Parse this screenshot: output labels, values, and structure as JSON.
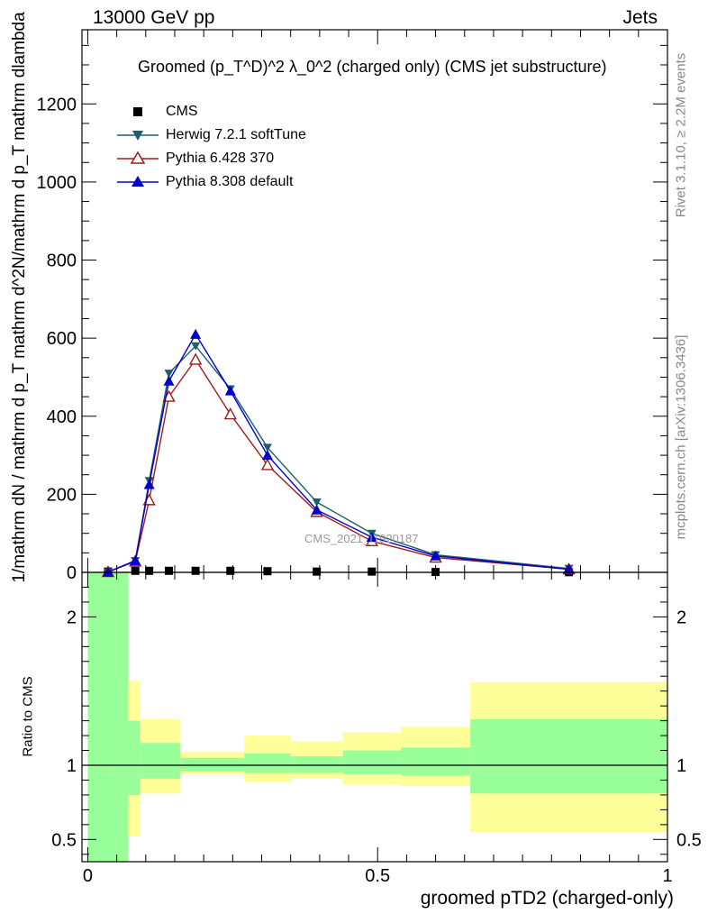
{
  "header": {
    "left": "13000 GeV pp",
    "right": "Jets"
  },
  "title": "Groomed (p_T^D)^2 λ_0^2  (charged only) (CMS jet substructure)",
  "side_text": {
    "rivet": "Rivet 3.1.10, ≥ 2.2M events",
    "mcplots": "mcplots.cern.ch [arXiv:1306.3436]"
  },
  "watermark": "CMS_2021_I1920187",
  "chart_data": [
    {
      "type": "line",
      "xlabel": "groomed pTD2 (charged-only)",
      "ylabel": "1/mathrm dN / mathrm d p_T mathrm d^2N/mathrm d p_T mathrm dlambda",
      "xlim": [
        -0.01,
        1.0
      ],
      "ylim": [
        0,
        1390
      ],
      "x_ticks": [
        0,
        0.5,
        1
      ],
      "x_tick_labels": [
        "0",
        "0.5",
        "1"
      ],
      "y_ticks": [
        0,
        200,
        400,
        600,
        800,
        1000,
        1200
      ],
      "y_tick_labels": [
        "0",
        "200",
        "400",
        "600",
        "800",
        "1000",
        "1200"
      ],
      "legend_position": "top-left",
      "series": [
        {
          "name": "CMS",
          "color": "#000000",
          "marker": "square",
          "x": [
            0.035,
            0.082,
            0.106,
            0.14,
            0.186,
            0.246,
            0.31,
            0.395,
            0.49,
            0.6,
            0.83
          ],
          "y": [
            2,
            4,
            4,
            4,
            4,
            4,
            3,
            2,
            2,
            1,
            0.5
          ]
        },
        {
          "name": "Herwig 7.2.1 softTune",
          "color": "#1f5f6b",
          "marker": "triangle-down",
          "x": [
            0.035,
            0.082,
            0.106,
            0.14,
            0.186,
            0.246,
            0.31,
            0.395,
            0.49,
            0.6,
            0.83
          ],
          "y": [
            1,
            30,
            235,
            510,
            580,
            470,
            320,
            180,
            100,
            45,
            10
          ]
        },
        {
          "name": "Pythia 6.428 370",
          "color": "#a01c1c",
          "marker": "triangle-up-open",
          "x": [
            0.035,
            0.082,
            0.106,
            0.14,
            0.186,
            0.246,
            0.31,
            0.395,
            0.49,
            0.6,
            0.83
          ],
          "y": [
            1,
            28,
            185,
            450,
            545,
            405,
            275,
            155,
            80,
            38,
            8
          ]
        },
        {
          "name": "Pythia 8.308 default",
          "color": "#0000cc",
          "marker": "triangle-up",
          "x": [
            0.035,
            0.082,
            0.106,
            0.14,
            0.186,
            0.246,
            0.31,
            0.395,
            0.49,
            0.6,
            0.83
          ],
          "y": [
            1,
            30,
            225,
            490,
            610,
            465,
            300,
            160,
            90,
            42,
            8
          ]
        }
      ]
    },
    {
      "type": "area",
      "ylabel": "Ratio to CMS",
      "xlim": [
        -0.01,
        1.0
      ],
      "ylim": [
        0.35,
        2.3
      ],
      "y_ticks": [
        0.5,
        1,
        2
      ],
      "y_tick_labels": [
        "0.5",
        "1",
        "2"
      ],
      "reference_line": 1,
      "bands": [
        {
          "x0": 0.0,
          "x1": 0.07,
          "stat": [
            0.35,
            2.3
          ],
          "total": [
            0.35,
            2.3
          ]
        },
        {
          "x0": 0.07,
          "x1": 0.09,
          "stat": [
            0.8,
            1.3
          ],
          "total": [
            0.52,
            1.57
          ]
        },
        {
          "x0": 0.09,
          "x1": 0.16,
          "stat": [
            0.91,
            1.15
          ],
          "total": [
            0.81,
            1.31
          ]
        },
        {
          "x0": 0.16,
          "x1": 0.27,
          "stat": [
            0.96,
            1.05
          ],
          "total": [
            0.94,
            1.09
          ]
        },
        {
          "x0": 0.27,
          "x1": 0.35,
          "stat": [
            0.95,
            1.08
          ],
          "total": [
            0.89,
            1.2
          ]
        },
        {
          "x0": 0.35,
          "x1": 0.44,
          "stat": [
            0.95,
            1.06
          ],
          "total": [
            0.91,
            1.16
          ]
        },
        {
          "x0": 0.44,
          "x1": 0.54,
          "stat": [
            0.94,
            1.1
          ],
          "total": [
            0.87,
            1.22
          ]
        },
        {
          "x0": 0.54,
          "x1": 0.66,
          "stat": [
            0.93,
            1.12
          ],
          "total": [
            0.86,
            1.26
          ]
        },
        {
          "x0": 0.66,
          "x1": 1.0,
          "stat": [
            0.81,
            1.31
          ],
          "total": [
            0.55,
            1.56
          ]
        }
      ],
      "colors": {
        "stat": "#99ff99",
        "total": "#ffff99"
      }
    }
  ]
}
